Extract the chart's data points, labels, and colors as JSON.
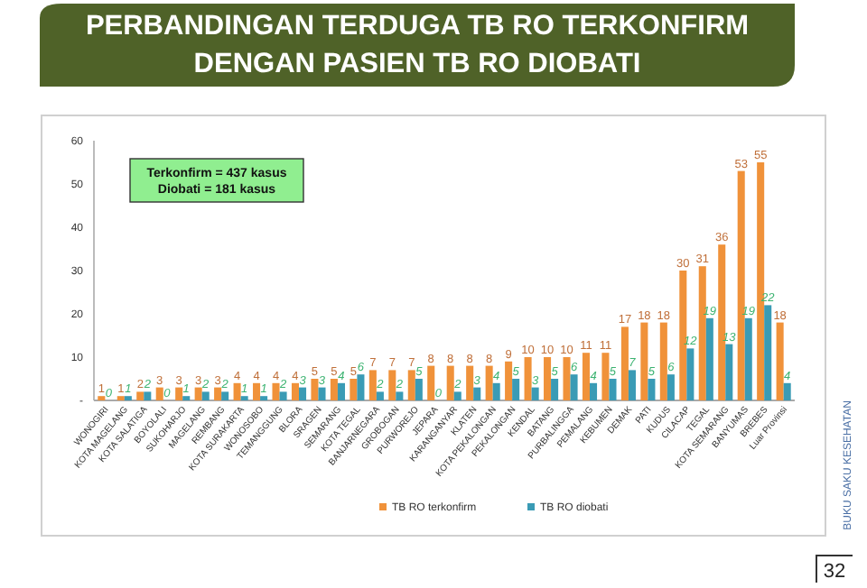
{
  "chart_data": {
    "type": "bar",
    "title": "PERBANDINGAN TERDUGA TB RO TERKONFIRM\nDENGAN PASIEN TB RO DIOBATI",
    "categories": [
      "WONOGIRI",
      "KOTA MAGELANG",
      "KOTA SALATIGA",
      "BOYOLALI",
      "SUKOHARJO",
      "MAGELANG",
      "REMBANG",
      "KOTA SURAKARTA",
      "WONOSOBO",
      "TEMANGGUNG",
      "BLORA",
      "SRAGEN",
      "SEMARANG",
      "KOTA TEGAL",
      "BANJARNEGARA",
      "GROBOGAN",
      "PURWOREJO",
      "JEPARA",
      "KARANGANYAR",
      "KLATEN",
      "KOTA PEKALONGAN",
      "PEKALONGAN",
      "KENDAL",
      "BATANG",
      "PURBALINGGA",
      "PEMALANG",
      "KEBUMEN",
      "DEMAK",
      "PATI",
      "KUDUS",
      "CILACAP",
      "TEGAL",
      "KOTA SEMARANG",
      "BANYUMAS",
      "BREBES",
      "Luar Provinsi"
    ],
    "series": [
      {
        "name": "TB RO terkonfirm",
        "color": "#f0923a",
        "values": [
          1,
          1,
          2,
          3,
          3,
          3,
          3,
          4,
          4,
          4,
          4,
          5,
          5,
          5,
          7,
          7,
          7,
          8,
          8,
          8,
          8,
          9,
          10,
          10,
          10,
          11,
          11,
          17,
          18,
          18,
          30,
          31,
          36,
          53,
          55,
          18
        ]
      },
      {
        "name": "TB RO diobati",
        "color": "#3a9bb5",
        "values": [
          0,
          1,
          2,
          0,
          1,
          2,
          2,
          1,
          1,
          2,
          3,
          3,
          4,
          6,
          2,
          2,
          5,
          0,
          2,
          3,
          4,
          5,
          3,
          5,
          6,
          4,
          5,
          7,
          5,
          6,
          12,
          19,
          13,
          19,
          22,
          4
        ]
      }
    ],
    "ylim": [
      0,
      60
    ],
    "yticks": [
      {
        "value": 0,
        "label": "-"
      },
      10,
      20,
      30,
      40,
      50,
      60
    ],
    "data_labels": true,
    "legend": "bottom",
    "annotations": [
      "Terkonfirm = 437 kasus\nDiobati = 181 kasus",
      "BUKU SAKU KESEHATAN",
      "32"
    ]
  }
}
